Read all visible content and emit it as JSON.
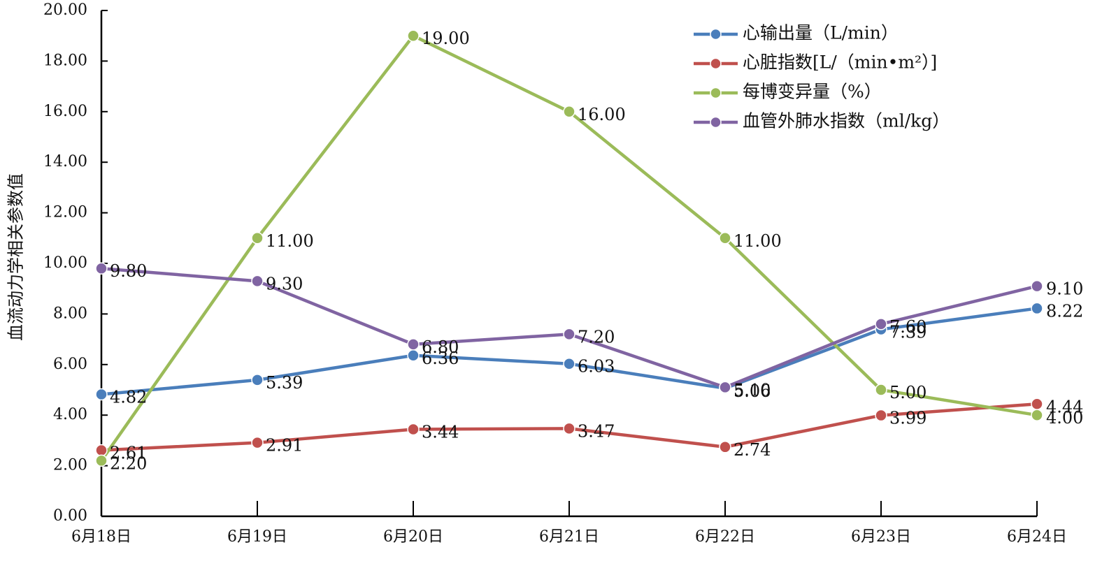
{
  "chart_data": {
    "type": "line",
    "title": "",
    "xlabel": "",
    "ylabel": "血流动力学相关参数值",
    "ylim": [
      0,
      20
    ],
    "ytick_step": 2,
    "ytick_labels": [
      "0.00",
      "2.00",
      "4.00",
      "6.00",
      "8.00",
      "10.00",
      "12.00",
      "14.00",
      "16.00",
      "18.00",
      "20.00"
    ],
    "categories": [
      "6月18日",
      "6月19日",
      "6月20日",
      "6月21日",
      "6月22日",
      "6月23日",
      "6月24日"
    ],
    "grid": false,
    "legend_position": "top-right",
    "series": [
      {
        "name": "心输出量（L/min）",
        "color": "#4a7ebb",
        "values": [
          4.82,
          5.39,
          6.36,
          6.03,
          5.06,
          7.39,
          8.22
        ],
        "labels": [
          "4.82",
          "5.39",
          "6.36",
          "6.03",
          "5.06",
          "7.39",
          "8.22"
        ]
      },
      {
        "name": "心脏指数[L/（min•m²）]",
        "color": "#c0504d",
        "values": [
          2.61,
          2.91,
          3.44,
          3.47,
          2.74,
          3.99,
          4.44
        ],
        "labels": [
          "2.61",
          "2.91",
          "3.44",
          "3.47",
          "2.74",
          "3.99",
          "4.44"
        ]
      },
      {
        "name": "每博变异量（%）",
        "color": "#9bbb59",
        "values": [
          2.2,
          11.0,
          19.0,
          16.0,
          11.0,
          5.0,
          4.0
        ],
        "labels": [
          "2.20",
          "11.00",
          "19.00",
          "16.00",
          "11.00",
          "5.00",
          "4.00"
        ]
      },
      {
        "name": "血管外肺水指数（ml/kg）",
        "color": "#8064a2",
        "values": [
          9.8,
          9.3,
          6.8,
          7.2,
          5.1,
          7.6,
          9.1
        ],
        "labels": [
          "9.80",
          "9.30",
          "6.80",
          "7.20",
          "5.10",
          "7.60",
          "9.10"
        ]
      }
    ]
  }
}
